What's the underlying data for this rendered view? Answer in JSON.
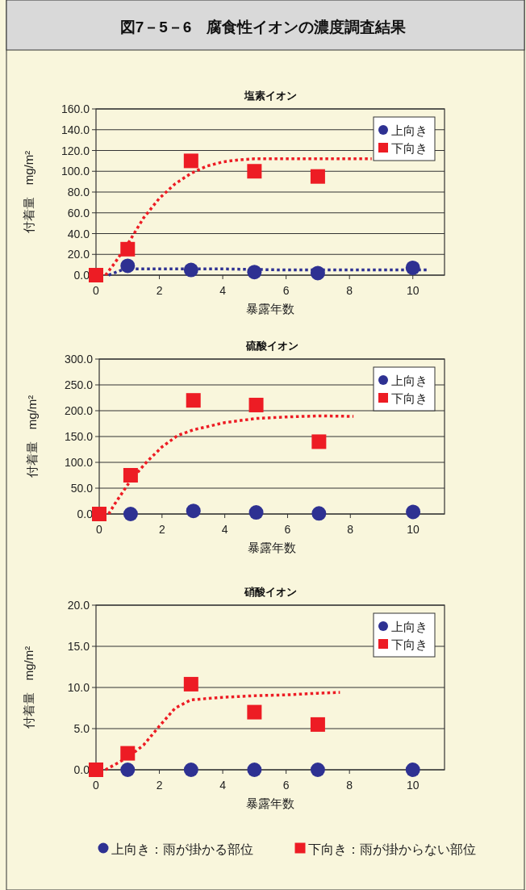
{
  "chart_data": [
    {
      "type": "scatter",
      "title": "塩素イオン",
      "xlabel": "暴露年数",
      "ylabel": "付着量　mg/m²",
      "annotations": [
        "図7－5－6　腐食性イオンの濃度調査結果"
      ],
      "xlim": [
        0,
        11
      ],
      "xticks": [
        0,
        2,
        4,
        6,
        8,
        10
      ],
      "ylim": [
        0,
        160
      ],
      "yticks": [
        {
          "value": 0,
          "label": "0.0"
        },
        {
          "value": 20,
          "label": "20.0"
        },
        {
          "value": 40,
          "label": "40.0"
        },
        {
          "value": 60,
          "label": "60.0"
        },
        {
          "value": 80,
          "label": "80.0"
        },
        {
          "value": 100,
          "label": "100.0"
        },
        {
          "value": 120,
          "label": "120.0"
        },
        {
          "value": 140,
          "label": "140.0"
        },
        {
          "value": 160,
          "label": "160.0"
        }
      ],
      "grid": "y",
      "legend": "top right",
      "series": [
        {
          "type": "line",
          "color": "#2e3192",
          "line_style": "dotted",
          "x": [
            0.4,
            0.9,
            2,
            4,
            6,
            8,
            10.5
          ],
          "values": [
            0,
            6,
            6,
            6,
            5,
            5,
            5
          ]
        },
        {
          "type": "line",
          "color": "#ed1c24",
          "line_style": "dotted",
          "x": [
            0.3,
            0.6,
            1,
            1.5,
            2,
            2.5,
            3,
            3.5,
            4,
            4.5,
            5,
            6,
            7,
            8,
            8.7
          ],
          "values": [
            0,
            12,
            30,
            55,
            74,
            88,
            98,
            105,
            109,
            111,
            112,
            112,
            112,
            112,
            112
          ]
        },
        {
          "name": "上向き",
          "color": "#2e3192",
          "marker": "circle",
          "x": [
            1,
            3,
            5,
            7,
            10
          ],
          "values": [
            9,
            5,
            3,
            2,
            7
          ]
        },
        {
          "name": "下向き",
          "color": "#ed1c24",
          "marker": "square",
          "x": [
            0,
            1,
            3,
            5,
            7
          ],
          "values": [
            0,
            25,
            110,
            100,
            95
          ]
        }
      ]
    },
    {
      "type": "scatter",
      "title": "硫酸イオン",
      "xlabel": "暴露年数",
      "ylabel": "付着量　mg/m²",
      "xlim": [
        0,
        11
      ],
      "xticks": [
        0,
        2,
        4,
        6,
        8,
        10
      ],
      "ylim": [
        0,
        300
      ],
      "yticks": [
        {
          "value": 0,
          "label": "0.0"
        },
        {
          "value": 50,
          "label": "50.0"
        },
        {
          "value": 100,
          "label": "100.0"
        },
        {
          "value": 150,
          "label": "150.0"
        },
        {
          "value": 200,
          "label": "200.0"
        },
        {
          "value": 250,
          "label": "250.0"
        },
        {
          "value": 300,
          "label": "300.0"
        }
      ],
      "grid": "y",
      "legend": "top right",
      "series": [
        {
          "type": "line",
          "color": "#ed1c24",
          "line_style": "dotted",
          "x": [
            0.3,
            0.5,
            1,
            1.5,
            2,
            2.5,
            3,
            4,
            5,
            6,
            7,
            8.1
          ],
          "values": [
            0,
            20,
            65,
            100,
            130,
            152,
            163,
            177,
            185,
            188,
            190,
            189
          ]
        },
        {
          "name": "上向き",
          "color": "#2e3192",
          "marker": "circle",
          "x": [
            1,
            3,
            5,
            7,
            10
          ],
          "values": [
            0,
            6,
            3,
            1,
            4
          ]
        },
        {
          "name": "下向き",
          "color": "#ed1c24",
          "marker": "square",
          "x": [
            0,
            1,
            3,
            5,
            7
          ],
          "values": [
            0,
            75,
            220,
            211,
            140
          ]
        }
      ]
    },
    {
      "type": "scatter",
      "title": "硝酸イオン",
      "xlabel": "暴露年数",
      "ylabel": "付着量　mg/m²",
      "annotations": [
        "上向き：雨が掛かる部位",
        "下向き：雨が掛からない部位"
      ],
      "xlim": [
        0,
        11
      ],
      "xticks": [
        0,
        2,
        4,
        6,
        8,
        10
      ],
      "ylim": [
        0,
        20
      ],
      "yticks": [
        {
          "value": 0,
          "label": "0.0"
        },
        {
          "value": 5,
          "label": "5.0"
        },
        {
          "value": 10,
          "label": "10.0"
        },
        {
          "value": 15,
          "label": "15.0"
        },
        {
          "value": 20,
          "label": "20.0"
        }
      ],
      "grid": "y",
      "legend": "top right",
      "series": [
        {
          "type": "line",
          "color": "#ed1c24",
          "line_style": "dotted",
          "x": [
            0.3,
            1,
            1.5,
            2,
            2.5,
            3,
            4,
            5,
            6,
            7,
            7.7
          ],
          "values": [
            0,
            1.5,
            3,
            5.3,
            7.5,
            8.5,
            8.8,
            9.0,
            9.1,
            9.3,
            9.4
          ]
        },
        {
          "name": "上向き",
          "color": "#2e3192",
          "marker": "circle",
          "x": [
            1,
            3,
            5,
            7,
            10
          ],
          "values": [
            0,
            0,
            0,
            0,
            0
          ]
        },
        {
          "name": "下向き",
          "color": "#ed1c24",
          "marker": "square",
          "x": [
            0,
            1,
            3,
            5,
            7
          ],
          "values": [
            0,
            2,
            10.4,
            7,
            5.5
          ]
        }
      ]
    }
  ]
}
